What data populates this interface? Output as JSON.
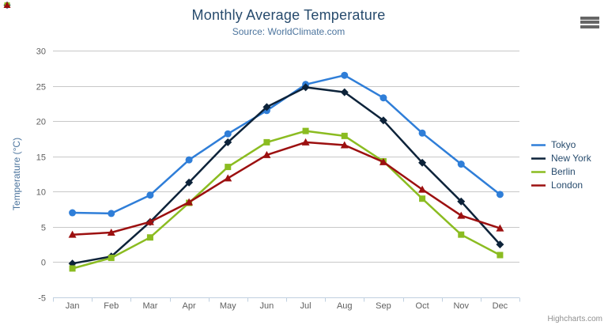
{
  "chart_data": {
    "type": "line",
    "title": "Monthly Average Temperature",
    "subtitle": "Source: WorldClimate.com",
    "categories": [
      "Jan",
      "Feb",
      "Mar",
      "Apr",
      "May",
      "Jun",
      "Jul",
      "Aug",
      "Sep",
      "Oct",
      "Nov",
      "Dec"
    ],
    "xlabel": "",
    "ylabel": "Temperature (°C)",
    "ylim": [
      -5,
      30
    ],
    "yticks": [
      -5,
      0,
      5,
      10,
      15,
      20,
      25,
      30
    ],
    "grid": true,
    "legend_position": "right-middle",
    "series": [
      {
        "name": "Tokyo",
        "color": "#2f7ed8",
        "marker": "circle",
        "values": [
          7.0,
          6.9,
          9.5,
          14.5,
          18.2,
          21.5,
          25.2,
          26.5,
          23.3,
          18.3,
          13.9,
          9.6
        ]
      },
      {
        "name": "New York",
        "color": "#0d233a",
        "marker": "diamond",
        "values": [
          -0.2,
          0.8,
          5.7,
          11.3,
          17.0,
          22.0,
          24.8,
          24.1,
          20.1,
          14.1,
          8.6,
          2.5
        ]
      },
      {
        "name": "Berlin",
        "color": "#8bbc21",
        "marker": "square",
        "values": [
          -0.9,
          0.6,
          3.5,
          8.4,
          13.5,
          17.0,
          18.6,
          17.9,
          14.3,
          9.0,
          3.9,
          1.0
        ]
      },
      {
        "name": "London",
        "color": "#9c1010",
        "marker": "triangle",
        "values": [
          3.9,
          4.2,
          5.7,
          8.5,
          11.9,
          15.2,
          17.0,
          16.6,
          14.2,
          10.3,
          6.6,
          4.8
        ]
      }
    ]
  },
  "ui": {
    "credits": "Highcharts.com",
    "icons": {
      "context_menu": "hamburger-icon"
    },
    "colors": {
      "title": "#274b6d",
      "subtitle": "#4d759e",
      "axis_labels": "#606060",
      "axis_title": "#4d759e",
      "grid": "#c8c8c8",
      "axis_line": "#c0d0e0",
      "legend_text": "#274b6d",
      "credits": "#909090",
      "menu_icon": "#666666"
    }
  }
}
